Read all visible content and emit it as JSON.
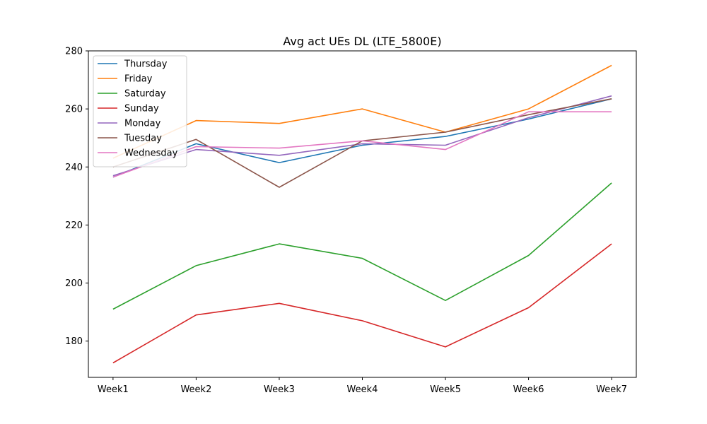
{
  "chart_data": {
    "type": "line",
    "title": "Avg act UEs DL (LTE_5800E)",
    "xlabel": "",
    "ylabel": "",
    "categories": [
      "Week1",
      "Week2",
      "Week3",
      "Week4",
      "Week5",
      "Week6",
      "Week7"
    ],
    "ylim": [
      167.5,
      280
    ],
    "yticks": [
      180,
      200,
      220,
      240,
      260,
      280
    ],
    "grid": false,
    "legend_position": "top-left",
    "series": [
      {
        "name": "Thursday",
        "color": "#1f77b4",
        "values": [
          236.5,
          248.0,
          241.5,
          247.5,
          250.5,
          256.5,
          263.5
        ]
      },
      {
        "name": "Friday",
        "color": "#ff7f0e",
        "values": [
          243.0,
          256.0,
          255.0,
          260.0,
          252.0,
          260.0,
          275.0
        ]
      },
      {
        "name": "Saturday",
        "color": "#2ca02c",
        "values": [
          191.0,
          206.0,
          213.5,
          208.5,
          194.0,
          209.5,
          234.5
        ]
      },
      {
        "name": "Sunday",
        "color": "#d62728",
        "values": [
          172.5,
          189.0,
          193.0,
          187.0,
          178.0,
          191.5,
          213.5
        ]
      },
      {
        "name": "Monday",
        "color": "#9467bd",
        "values": [
          237.0,
          246.0,
          244.0,
          248.0,
          247.5,
          257.0,
          264.5
        ]
      },
      {
        "name": "Tuesday",
        "color": "#8c564b",
        "values": [
          240.0,
          249.5,
          233.0,
          249.0,
          252.0,
          258.0,
          263.5
        ]
      },
      {
        "name": "Wednesday",
        "color": "#e377c2",
        "values": [
          236.5,
          247.0,
          246.5,
          249.0,
          246.0,
          259.0,
          259.0
        ]
      }
    ]
  }
}
